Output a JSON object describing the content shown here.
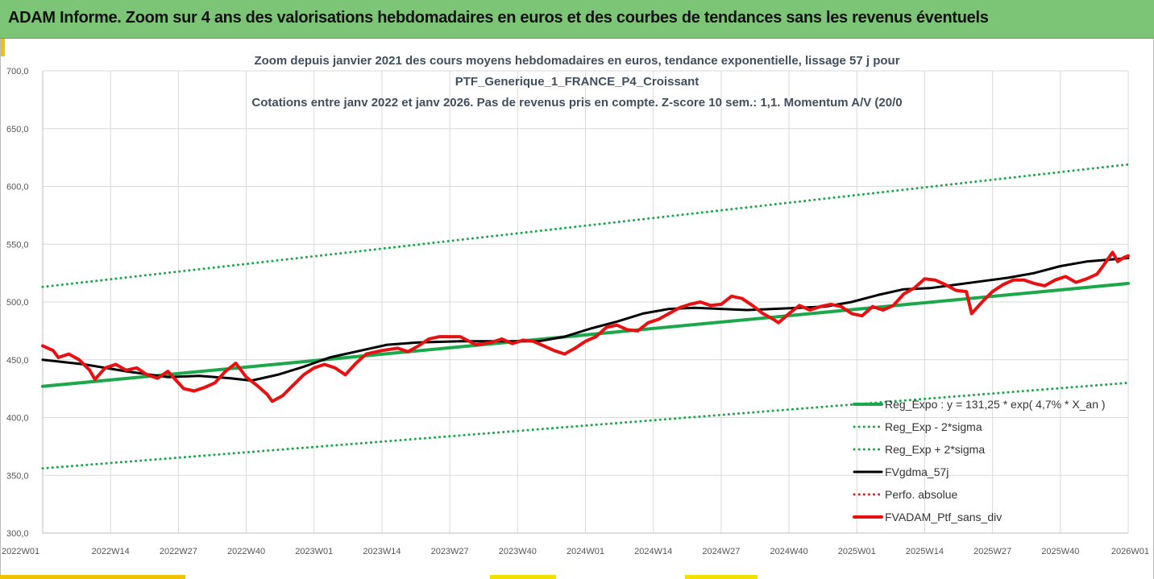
{
  "header": {
    "title": "ADAM Informe. Zoom sur 4 ans des valorisations hebdomadaires en euros et des courbes de tendances sans les revenus éventuels"
  },
  "colors": {
    "header_bg": "#7cc576",
    "trend": "#1aa84a",
    "band": "#1aa84a",
    "fvgdma": "#000000",
    "perfo": "#e02020",
    "ptf": "#e81010"
  },
  "chart_data": {
    "type": "line",
    "title_lines": [
      "Zoom depuis janvier 2021 des cours moyens hebdomadaires  en euros, tendance exponentielle, lissage 57 j pour",
      "PTF_Generique_1_FRANCE_P4_Croissant",
      "Cotations  entre janv 2022 et janv 2026. Pas de revenus pris en compte.  Z-score 10 sem.: 1,1. Momentum A/V (20/0"
    ],
    "ylim": [
      300,
      700
    ],
    "yticks": [
      "300,0",
      "350,0",
      "400,0",
      "450,0",
      "500,0",
      "550,0",
      "600,0",
      "650,0",
      "700,0"
    ],
    "xlim": [
      0,
      208
    ],
    "xticks": [
      {
        "x": 0,
        "label": "2022W01"
      },
      {
        "x": 13,
        "label": "2022W14"
      },
      {
        "x": 26,
        "label": "2022W27"
      },
      {
        "x": 39,
        "label": "2022W40"
      },
      {
        "x": 52,
        "label": "2023W01"
      },
      {
        "x": 65,
        "label": "2023W14"
      },
      {
        "x": 78,
        "label": "2023W27"
      },
      {
        "x": 91,
        "label": "2023W40"
      },
      {
        "x": 104,
        "label": "2024W01"
      },
      {
        "x": 117,
        "label": "2024W14"
      },
      {
        "x": 130,
        "label": "2024W27"
      },
      {
        "x": 143,
        "label": "2024W40"
      },
      {
        "x": 156,
        "label": "2025W01"
      },
      {
        "x": 169,
        "label": "2025W14"
      },
      {
        "x": 182,
        "label": "2025W27"
      },
      {
        "x": 195,
        "label": "2025W40"
      },
      {
        "x": 208,
        "label": "2026W01"
      }
    ],
    "series": [
      {
        "name": "Reg_Expo : y = 131,25 * exp( 4,7% *  X_an )",
        "style": "solid",
        "width": 4,
        "color": "#1aa84a",
        "points": [
          [
            0,
            427
          ],
          [
            208,
            516
          ]
        ]
      },
      {
        "name": "Reg_Exp - 2*sigma",
        "style": "dotted",
        "width": 3,
        "color": "#1aa84a",
        "points": [
          [
            0,
            356
          ],
          [
            208,
            430
          ]
        ]
      },
      {
        "name": "Reg_Exp + 2*sigma",
        "style": "dotted",
        "width": 3,
        "color": "#1aa84a",
        "points": [
          [
            0,
            513
          ],
          [
            208,
            619
          ]
        ]
      },
      {
        "name": "FVgdma_57j",
        "style": "solid",
        "width": 3,
        "color": "#000000",
        "points": [
          [
            0,
            450
          ],
          [
            8,
            446
          ],
          [
            16,
            440
          ],
          [
            24,
            435
          ],
          [
            30,
            436
          ],
          [
            36,
            434
          ],
          [
            40,
            432
          ],
          [
            45,
            437
          ],
          [
            50,
            444
          ],
          [
            55,
            452
          ],
          [
            60,
            457
          ],
          [
            66,
            463
          ],
          [
            72,
            465
          ],
          [
            80,
            466
          ],
          [
            88,
            466
          ],
          [
            95,
            466
          ],
          [
            100,
            470
          ],
          [
            105,
            477
          ],
          [
            110,
            483
          ],
          [
            115,
            490
          ],
          [
            120,
            494
          ],
          [
            125,
            495
          ],
          [
            130,
            494
          ],
          [
            135,
            493
          ],
          [
            140,
            494
          ],
          [
            145,
            495
          ],
          [
            150,
            496
          ],
          [
            155,
            500
          ],
          [
            160,
            506
          ],
          [
            165,
            511
          ],
          [
            170,
            512
          ],
          [
            175,
            515
          ],
          [
            180,
            518
          ],
          [
            185,
            521
          ],
          [
            190,
            525
          ],
          [
            195,
            531
          ],
          [
            200,
            535
          ],
          [
            208,
            538
          ]
        ]
      },
      {
        "name": "Perfo. absolue",
        "style": "dotted",
        "width": 3,
        "color": "#e02020",
        "points": []
      },
      {
        "name": "FVADAM_Ptf_sans_div",
        "style": "solid",
        "width": 4,
        "color": "#e81010",
        "points": [
          [
            0,
            462
          ],
          [
            2,
            458
          ],
          [
            3,
            452
          ],
          [
            5,
            455
          ],
          [
            7,
            450
          ],
          [
            9,
            441
          ],
          [
            10,
            433
          ],
          [
            12,
            443
          ],
          [
            14,
            446
          ],
          [
            16,
            441
          ],
          [
            18,
            443
          ],
          [
            20,
            437
          ],
          [
            22,
            434
          ],
          [
            24,
            440
          ],
          [
            25,
            435
          ],
          [
            27,
            425
          ],
          [
            29,
            423
          ],
          [
            31,
            426
          ],
          [
            33,
            430
          ],
          [
            35,
            440
          ],
          [
            37,
            447
          ],
          [
            39,
            435
          ],
          [
            41,
            428
          ],
          [
            43,
            420
          ],
          [
            44,
            414
          ],
          [
            46,
            419
          ],
          [
            48,
            428
          ],
          [
            50,
            437
          ],
          [
            52,
            443
          ],
          [
            54,
            446
          ],
          [
            56,
            443
          ],
          [
            58,
            437
          ],
          [
            60,
            447
          ],
          [
            62,
            455
          ],
          [
            65,
            458
          ],
          [
            68,
            460
          ],
          [
            70,
            457
          ],
          [
            72,
            462
          ],
          [
            74,
            468
          ],
          [
            76,
            470
          ],
          [
            80,
            470
          ],
          [
            83,
            463
          ],
          [
            86,
            465
          ],
          [
            88,
            468
          ],
          [
            90,
            464
          ],
          [
            92,
            467
          ],
          [
            94,
            466
          ],
          [
            96,
            462
          ],
          [
            98,
            458
          ],
          [
            100,
            455
          ],
          [
            102,
            460
          ],
          [
            104,
            466
          ],
          [
            106,
            470
          ],
          [
            108,
            478
          ],
          [
            110,
            480
          ],
          [
            112,
            476
          ],
          [
            114,
            475
          ],
          [
            116,
            482
          ],
          [
            118,
            485
          ],
          [
            120,
            490
          ],
          [
            122,
            495
          ],
          [
            124,
            498
          ],
          [
            126,
            500
          ],
          [
            128,
            497
          ],
          [
            130,
            498
          ],
          [
            132,
            505
          ],
          [
            134,
            503
          ],
          [
            136,
            497
          ],
          [
            138,
            490
          ],
          [
            140,
            485
          ],
          [
            141,
            482
          ],
          [
            143,
            490
          ],
          [
            145,
            497
          ],
          [
            147,
            493
          ],
          [
            149,
            496
          ],
          [
            151,
            498
          ],
          [
            153,
            496
          ],
          [
            155,
            490
          ],
          [
            157,
            488
          ],
          [
            159,
            496
          ],
          [
            161,
            493
          ],
          [
            163,
            497
          ],
          [
            165,
            507
          ],
          [
            167,
            512
          ],
          [
            169,
            520
          ],
          [
            171,
            519
          ],
          [
            173,
            515
          ],
          [
            175,
            510
          ],
          [
            177,
            509
          ],
          [
            178,
            490
          ],
          [
            180,
            500
          ],
          [
            182,
            509
          ],
          [
            184,
            515
          ],
          [
            186,
            519
          ],
          [
            188,
            519
          ],
          [
            190,
            516
          ],
          [
            192,
            514
          ],
          [
            194,
            519
          ],
          [
            196,
            522
          ],
          [
            198,
            517
          ],
          [
            200,
            520
          ],
          [
            202,
            524
          ],
          [
            203,
            530
          ],
          [
            205,
            543
          ],
          [
            206,
            535
          ],
          [
            207,
            538
          ],
          [
            208,
            540
          ]
        ]
      }
    ]
  },
  "legend": {
    "placement": "right-middle",
    "entries": [
      "Reg_Expo : y = 131,25 * exp( 4,7% *  X_an )",
      "Reg_Exp - 2*sigma",
      "Reg_Exp + 2*sigma",
      "FVgdma_57j",
      "Perfo. absolue",
      "FVADAM_Ptf_sans_div"
    ]
  }
}
